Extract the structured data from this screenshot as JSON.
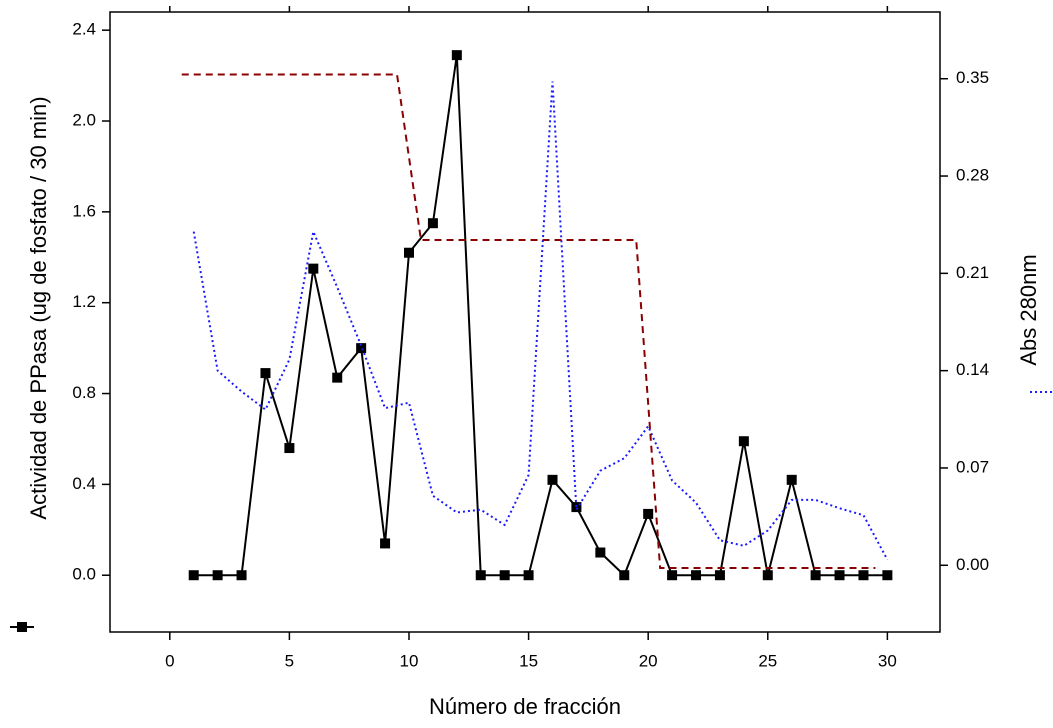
{
  "chart_data": {
    "type": "line",
    "x_label": "Número de fracción",
    "y_label": "Actividad de PPasa (ug de fosfato / 30 min)",
    "y2_label": "Abs 280nm",
    "xlim": [
      -2.5,
      32.2
    ],
    "xticks": [
      0,
      5,
      10,
      15,
      20,
      25,
      30
    ],
    "ylim": [
      -0.25,
      2.48
    ],
    "yticks": [
      {
        "value": 0,
        "label": "0.0"
      },
      0.4,
      0.8,
      1.2,
      1.6,
      {
        "value": 2,
        "label": "2.0"
      },
      2.4
    ],
    "y2lim": [
      -0.048,
      0.398
    ],
    "y2ticks": [
      {
        "value": 0,
        "label": "0.00"
      },
      0.07,
      0.14,
      0.21,
      0.28,
      0.35
    ],
    "series": [
      {
        "color": "#000000",
        "style": "solid-square",
        "x": [
          1,
          2,
          3,
          4,
          5,
          6,
          7,
          8,
          9,
          10,
          11,
          12,
          13,
          14,
          15,
          16,
          17,
          18,
          19,
          20,
          21,
          22,
          23,
          24,
          25,
          26,
          27,
          28,
          29,
          30
        ],
        "values": [
          0,
          0,
          0,
          0.89,
          0.56,
          1.35,
          0.87,
          1.0,
          0.14,
          1.42,
          1.55,
          2.29,
          0,
          0,
          0,
          0.42,
          0.3,
          0.1,
          0,
          0.27,
          0,
          0,
          0,
          0.59,
          0,
          0.42,
          0,
          0,
          0,
          0
        ]
      },
      {
        "color": "#1a1aff",
        "style": "dotted",
        "axis": "y2",
        "x": [
          1,
          2,
          3,
          4,
          5,
          6,
          7,
          8,
          9,
          10,
          11,
          12,
          13,
          14,
          15,
          16,
          17,
          18,
          19,
          20,
          21,
          22,
          23,
          24,
          25,
          26,
          27,
          28,
          29,
          30
        ],
        "values": [
          0.24,
          0.14,
          0.125,
          0.112,
          0.148,
          0.24,
          0.2,
          0.158,
          0.113,
          0.117,
          0.05,
          0.038,
          0.04,
          0.029,
          0.065,
          0.348,
          0.04,
          0.068,
          0.077,
          0.1,
          0.061,
          0.045,
          0.018,
          0.014,
          0.025,
          0.047,
          0.047,
          0.041,
          0.036,
          0.004
        ]
      },
      {
        "color": "#8b0000",
        "style": "dashed",
        "axis": "y2",
        "x": [
          0.5,
          9.5,
          10.5,
          19.5,
          20.5,
          29.5
        ],
        "values": [
          0.353,
          0.353,
          0.234,
          0.234,
          -0.002,
          -0.002
        ]
      }
    ]
  }
}
